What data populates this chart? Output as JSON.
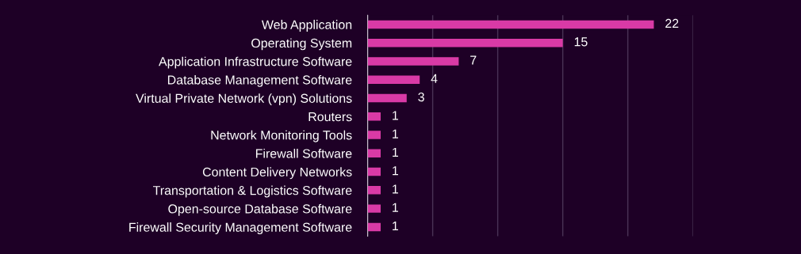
{
  "chart_data": {
    "type": "bar",
    "orientation": "horizontal",
    "categories": [
      "Web Application",
      "Operating System",
      "Application Infrastructure Software",
      "Database Management Software",
      "Virtual Private Network (vpn) Solutions",
      "Routers",
      "Network Monitoring Tools",
      "Firewall Software",
      "Content Delivery Networks",
      "Transportation & Logistics Software",
      "Open-source Database Software",
      "Firewall Security Management Software"
    ],
    "values": [
      22,
      15,
      7,
      4,
      3,
      1,
      1,
      1,
      1,
      1,
      1,
      1
    ],
    "color": "#d93aa6",
    "xlim": [
      0,
      25
    ],
    "xticks": [
      {
        "value": 0,
        "label": null
      },
      {
        "value": 5,
        "label": null
      },
      {
        "value": 10,
        "label": null
      },
      {
        "value": 15,
        "label": null
      },
      {
        "value": 20,
        "label": null
      },
      {
        "value": 25,
        "label": null
      }
    ],
    "grid": "x",
    "tick_labels": "y",
    "data_labels": true
  }
}
